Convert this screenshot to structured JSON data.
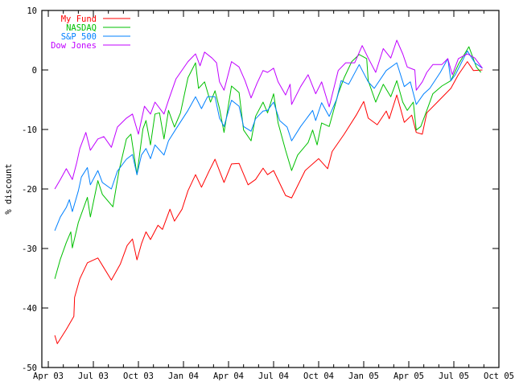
{
  "chart_data": {
    "type": "line",
    "title": "",
    "xlabel": "",
    "ylabel": "% discount",
    "x_units": "months since Apr 2003",
    "xlim": [
      -0.43,
      30
    ],
    "ylim": [
      -50,
      10
    ],
    "grid": false,
    "legend_position": "top-left",
    "x_ticks": [
      {
        "value": 0,
        "label": "Apr 03"
      },
      {
        "value": 3,
        "label": "Jul 03"
      },
      {
        "value": 6,
        "label": "Oct 03"
      },
      {
        "value": 9,
        "label": "Jan 04"
      },
      {
        "value": 12,
        "label": "Apr 04"
      },
      {
        "value": 15,
        "label": "Jul 04"
      },
      {
        "value": 18,
        "label": "Oct 04"
      },
      {
        "value": 21,
        "label": "Jan 05"
      },
      {
        "value": 24,
        "label": "Apr 05"
      },
      {
        "value": 27,
        "label": "Jul 05"
      },
      {
        "value": 30,
        "label": "Oct 05"
      }
    ],
    "y_ticks": [
      {
        "value": 10,
        "label": "10"
      },
      {
        "value": 0,
        "label": "0"
      },
      {
        "value": -10,
        "label": "-10"
      },
      {
        "value": -20,
        "label": "-20"
      },
      {
        "value": -30,
        "label": "-30"
      },
      {
        "value": -40,
        "label": "-40"
      },
      {
        "value": -50,
        "label": "-50"
      }
    ],
    "series": [
      {
        "name": "My Fund",
        "color": "#ff0000",
        "x": [
          0.43,
          0.6,
          1.2,
          1.7,
          1.75,
          2.1,
          2.6,
          3.3,
          4.2,
          4.8,
          5.25,
          5.6,
          5.9,
          6.2,
          6.5,
          6.8,
          7.3,
          7.6,
          8.1,
          8.4,
          8.9,
          9.3,
          9.8,
          10.2,
          10.7,
          11.1,
          11.7,
          12.2,
          12.7,
          13.3,
          13.8,
          14.3,
          14.6,
          15.0,
          15.8,
          16.2,
          17.1,
          18.0,
          18.6,
          18.9,
          19.7,
          20.5,
          21.0,
          21.3,
          21.9,
          22.5,
          22.7,
          23.2,
          23.7,
          24.2,
          24.5,
          24.9,
          25.2,
          25.9,
          26.8,
          27.3,
          27.9,
          28.3,
          28.9
        ],
        "y": [
          -44.6,
          -46,
          -43.6,
          -41.4,
          -38.2,
          -35.1,
          -32.4,
          -31.6,
          -35.3,
          -32.6,
          -29.5,
          -28.4,
          -31.9,
          -29.2,
          -27.2,
          -28.5,
          -26.1,
          -26.8,
          -23.4,
          -25.4,
          -23.4,
          -20.3,
          -17.6,
          -19.7,
          -17,
          -15,
          -18.9,
          -15.8,
          -15.7,
          -19.3,
          -18.4,
          -16.5,
          -17.6,
          -16.9,
          -21.1,
          -21.5,
          -16.9,
          -14.9,
          -16.6,
          -13.7,
          -10.8,
          -7.6,
          -5.3,
          -8.1,
          -9.2,
          -6.9,
          -8.2,
          -4.2,
          -8.8,
          -7.6,
          -10.5,
          -10.8,
          -7.2,
          -5.4,
          -3.1,
          -0.8,
          1.4,
          -0.1,
          0
        ]
      },
      {
        "name": "NASDAQ",
        "color": "#00c000",
        "x": [
          0.43,
          0.8,
          1.2,
          1.5,
          1.6,
          2.0,
          2.6,
          2.8,
          3.3,
          3.6,
          4.3,
          4.7,
          5.2,
          5.5,
          5.9,
          6.3,
          6.5,
          6.8,
          7.1,
          7.4,
          7.7,
          8.0,
          8.4,
          8.8,
          9.3,
          9.8,
          10.0,
          10.4,
          10.8,
          11.1,
          11.4,
          11.7,
          12.2,
          12.7,
          13.0,
          13.5,
          13.8,
          14.3,
          14.6,
          15.0,
          15.3,
          15.8,
          16.2,
          16.6,
          17.3,
          17.6,
          17.9,
          18.2,
          18.7,
          19.3,
          19.7,
          20.2,
          20.7,
          21.2,
          21.3,
          21.8,
          22.3,
          22.8,
          23.2,
          23.6,
          23.9,
          24.3,
          24.5,
          24.8,
          25.2,
          25.6,
          26.2,
          26.8,
          27.3,
          28.0,
          28.5,
          28.8
        ],
        "y": [
          -35.1,
          -31.8,
          -29,
          -27.2,
          -29.9,
          -25.6,
          -21.4,
          -24.7,
          -18.6,
          -20.9,
          -23,
          -17,
          -11.6,
          -10.8,
          -17.6,
          -9.9,
          -8.5,
          -12.6,
          -7.4,
          -7.2,
          -11.6,
          -6.8,
          -9.6,
          -7.2,
          -1.3,
          1.2,
          -3.1,
          -2,
          -5.4,
          -3.5,
          -6.5,
          -10.5,
          -2.7,
          -3.8,
          -10.1,
          -11.9,
          -7.8,
          -5.4,
          -7.2,
          -4,
          -8.9,
          -13.5,
          -16.9,
          -14.3,
          -12.2,
          -10.1,
          -12.6,
          -8.9,
          -9.5,
          -4,
          -1.3,
          1.4,
          2.6,
          1.9,
          -1.8,
          -5.4,
          -2.4,
          -4.5,
          -1.8,
          -5.4,
          -6.8,
          -5.4,
          -10.1,
          -9.5,
          -6.8,
          -4,
          -2.7,
          -1.8,
          0.9,
          3.9,
          0.5,
          -0.4
        ]
      },
      {
        "name": "S&P 500",
        "color": "#0080ff",
        "x": [
          0.43,
          0.8,
          1.2,
          1.4,
          1.6,
          2.0,
          2.2,
          2.6,
          2.8,
          3.3,
          3.6,
          4.2,
          4.6,
          5.2,
          5.6,
          5.9,
          6.2,
          6.5,
          6.8,
          7.1,
          7.7,
          8.0,
          8.5,
          9.3,
          9.8,
          10.2,
          10.6,
          11.1,
          11.4,
          11.7,
          12.2,
          12.7,
          13.0,
          13.5,
          13.8,
          14.3,
          14.6,
          15.0,
          15.4,
          15.9,
          16.2,
          16.8,
          17.6,
          17.8,
          18.2,
          18.7,
          19.2,
          19.5,
          20.0,
          20.7,
          21.3,
          21.7,
          22.5,
          23.2,
          23.7,
          24.1,
          24.5,
          25.0,
          25.4,
          26.1,
          26.6,
          26.8,
          27.1,
          27.9,
          28.4,
          28.9
        ],
        "y": [
          -27,
          -24.7,
          -23.1,
          -21.8,
          -23.8,
          -20.3,
          -18,
          -16.4,
          -19.3,
          -16.9,
          -18.9,
          -20,
          -17,
          -15,
          -14.2,
          -17.6,
          -14.3,
          -13.2,
          -14.9,
          -12.6,
          -14.3,
          -11.9,
          -9.9,
          -6.8,
          -4.5,
          -6.5,
          -4.5,
          -4.5,
          -8.1,
          -9.5,
          -5.1,
          -6.1,
          -9.5,
          -10.3,
          -8.2,
          -6.9,
          -6.8,
          -5.4,
          -8.5,
          -9.6,
          -11.9,
          -9.5,
          -6.8,
          -8.5,
          -5.5,
          -7.8,
          -4.9,
          -1.8,
          -2.4,
          0.9,
          -2,
          -3.1,
          -0.1,
          1.2,
          -2.8,
          -2,
          -5.8,
          -4,
          -3.1,
          -0.4,
          1.9,
          -1.8,
          -0.8,
          3.2,
          1.2,
          0.3
        ]
      },
      {
        "name": "Dow Jones",
        "color": "#c000ff",
        "x": [
          0.43,
          0.8,
          1.2,
          1.6,
          1.9,
          2.1,
          2.5,
          2.8,
          3.3,
          3.7,
          4.2,
          4.6,
          5.2,
          5.6,
          6.0,
          6.4,
          6.8,
          7.1,
          7.7,
          8.0,
          8.5,
          9.3,
          9.8,
          10.1,
          10.4,
          10.9,
          11.2,
          11.4,
          11.7,
          12.2,
          12.7,
          13.1,
          13.5,
          13.9,
          14.3,
          14.6,
          15.0,
          15.3,
          15.8,
          16.1,
          16.2,
          16.8,
          17.3,
          17.8,
          18.2,
          18.7,
          19.3,
          19.8,
          20.4,
          20.9,
          21.3,
          21.8,
          22.3,
          22.8,
          23.2,
          23.6,
          23.9,
          24.4,
          24.5,
          24.9,
          25.2,
          25.6,
          26.2,
          26.6,
          26.9,
          27.3,
          27.9,
          28.4,
          28.9
        ],
        "y": [
          -20,
          -18.4,
          -16.6,
          -18.4,
          -15.5,
          -13.2,
          -10.5,
          -13.5,
          -11.6,
          -11.2,
          -13,
          -9.6,
          -8.1,
          -7.4,
          -10.8,
          -6.1,
          -7.4,
          -5.4,
          -7.4,
          -5.1,
          -1.5,
          1.4,
          2.7,
          0.7,
          3,
          2,
          1.2,
          -2,
          -3.4,
          1.4,
          0.5,
          -1.8,
          -4.7,
          -2.2,
          -0.1,
          -0.4,
          0.3,
          -2,
          -4.2,
          -2.4,
          -5.8,
          -2.8,
          -0.8,
          -4,
          -2,
          -6.2,
          -0.1,
          1.2,
          1.2,
          4.1,
          2,
          -0.4,
          3.6,
          2,
          5,
          2.7,
          0.5,
          0,
          -3.4,
          -2,
          -0.4,
          0.9,
          0.9,
          1.9,
          -0.8,
          1.9,
          2.7,
          2,
          0.3
        ]
      }
    ]
  }
}
